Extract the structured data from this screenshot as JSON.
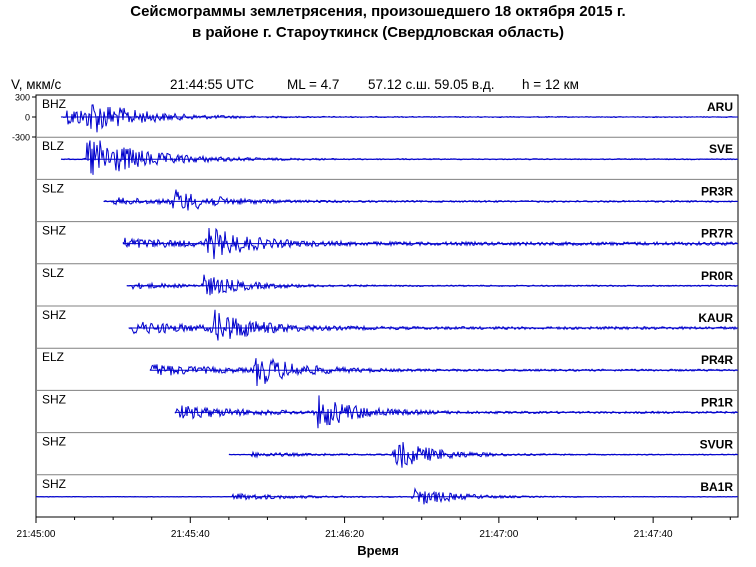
{
  "header": {
    "title_line1": "Сейсмограммы землетрясения, произошедшего 18 октября 2015 г.",
    "title_line2": "в районе г. Староуткинск (Свердловская область)"
  },
  "info": {
    "ylabel": "V, мкм/с",
    "time": "21:44:55 UTC",
    "magnitude": "ML = 4.7",
    "coords": "57.12 с.ш. 59.05 в.д.",
    "depth": "h = 12 км"
  },
  "chart_data": {
    "type": "line",
    "title": "Сейсмограммы землетрясения, произошедшего 18 октября 2015 г. в районе г. Староуткинск (Свердловская область)",
    "xlabel": "Время",
    "ylabel": "V, мкм/с",
    "x_tick_labels": [
      "21:45:00",
      "21:45:40",
      "21:46:20",
      "21:47:00",
      "21:47:40"
    ],
    "x_ticks_seconds": [
      0,
      40,
      80,
      120,
      160
    ],
    "xlim_seconds": [
      0,
      182
    ],
    "y_tick_labels": [
      "300",
      "0",
      "-300"
    ],
    "grid": "horizontal separators",
    "traces": [
      {
        "component": "BHZ",
        "station": "ARU",
        "start_s": 6.5,
        "p_s": 8,
        "s_s": 13.5,
        "s_amp": 0.75,
        "p_amp": 0.55,
        "noise": 0.03
      },
      {
        "component": "BLZ",
        "station": "SVE",
        "start_s": 6.5,
        "p_s": 12.5,
        "s_s": 13.5,
        "s_amp": 0.55,
        "p_amp": 0.95,
        "noise": 0.03
      },
      {
        "component": "SLZ",
        "station": "PR3R",
        "start_s": 17.5,
        "p_s": 20,
        "s_s": 35.5,
        "s_amp": 0.65,
        "p_amp": 0.2,
        "noise": 0.05
      },
      {
        "component": "SHZ",
        "station": "PR7R",
        "start_s": 22.5,
        "p_s": 23,
        "s_s": 44.5,
        "s_amp": 0.9,
        "p_amp": 0.25,
        "noise": 0.1
      },
      {
        "component": "SLZ",
        "station": "PR0R",
        "start_s": 23.5,
        "p_s": 25,
        "s_s": 43.5,
        "s_amp": 0.6,
        "p_amp": 0.15,
        "noise": 0.04
      },
      {
        "component": "SHZ",
        "station": "KAUR",
        "start_s": 24,
        "p_s": 25,
        "s_s": 46,
        "s_amp": 0.95,
        "p_amp": 0.35,
        "noise": 0.08
      },
      {
        "component": "ELZ",
        "station": "PR4R",
        "start_s": 29.5,
        "p_s": 30,
        "s_s": 57,
        "s_amp": 0.9,
        "p_amp": 0.35,
        "noise": 0.06
      },
      {
        "component": "SHZ",
        "station": "PR1R",
        "start_s": 36,
        "p_s": 36.5,
        "s_s": 73,
        "s_amp": 0.95,
        "p_amp": 0.4,
        "noise": 0.06
      },
      {
        "component": "SHZ",
        "station": "SVUR",
        "start_s": 50,
        "p_s": 56,
        "s_s": 93,
        "s_amp": 0.9,
        "p_amp": 0.12,
        "noise": 0.03
      },
      {
        "component": "SHZ",
        "station": "BA1R",
        "start_s": 0,
        "p_s": 51,
        "s_s": 98,
        "s_amp": 0.55,
        "p_amp": 0.2,
        "noise": 0.02
      }
    ]
  },
  "colors": {
    "trace": "#0000cc",
    "separator": "#808080",
    "axis": "#000000"
  }
}
